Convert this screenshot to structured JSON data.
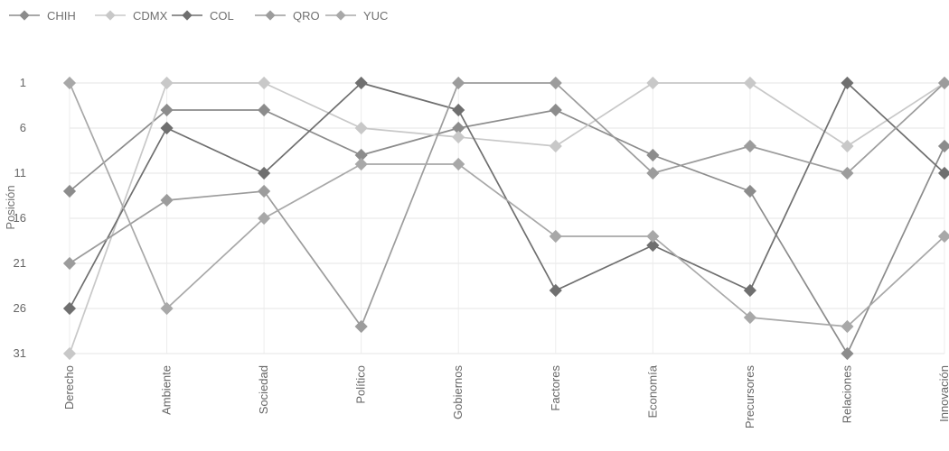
{
  "chart_data": {
    "type": "line",
    "title": "",
    "xlabel": "",
    "ylabel": "Posición",
    "categories": [
      "Derecho",
      "Ambiente",
      "Sociedad",
      "Político",
      "Gobiernos",
      "Factores",
      "Economía",
      "Precursores",
      "Relaciones",
      "Innovación"
    ],
    "y_ticks": [
      1,
      6,
      11,
      16,
      21,
      26,
      31
    ],
    "ylim": [
      31,
      1
    ],
    "y_inverted": true,
    "grid": true,
    "legend_position": "top-left",
    "series": [
      {
        "name": "CHIH",
        "color": "#8c8c8c",
        "values": [
          13,
          4,
          4,
          9,
          6,
          4,
          9,
          13,
          31,
          8
        ]
      },
      {
        "name": "CDMX",
        "color": "#c8c8c8",
        "values": [
          31,
          1,
          1,
          6,
          7,
          8,
          1,
          1,
          8,
          1
        ]
      },
      {
        "name": "COL",
        "color": "#6f6f6f",
        "values": [
          26,
          6,
          11,
          1,
          4,
          24,
          19,
          24,
          1,
          11
        ]
      },
      {
        "name": "QRO",
        "color": "#9c9c9c",
        "values": [
          21,
          14,
          13,
          28,
          1,
          1,
          11,
          8,
          11,
          1
        ]
      },
      {
        "name": "YUC",
        "color": "#a8a8a8",
        "values": [
          1,
          26,
          16,
          10,
          10,
          18,
          18,
          27,
          28,
          18
        ]
      }
    ]
  }
}
